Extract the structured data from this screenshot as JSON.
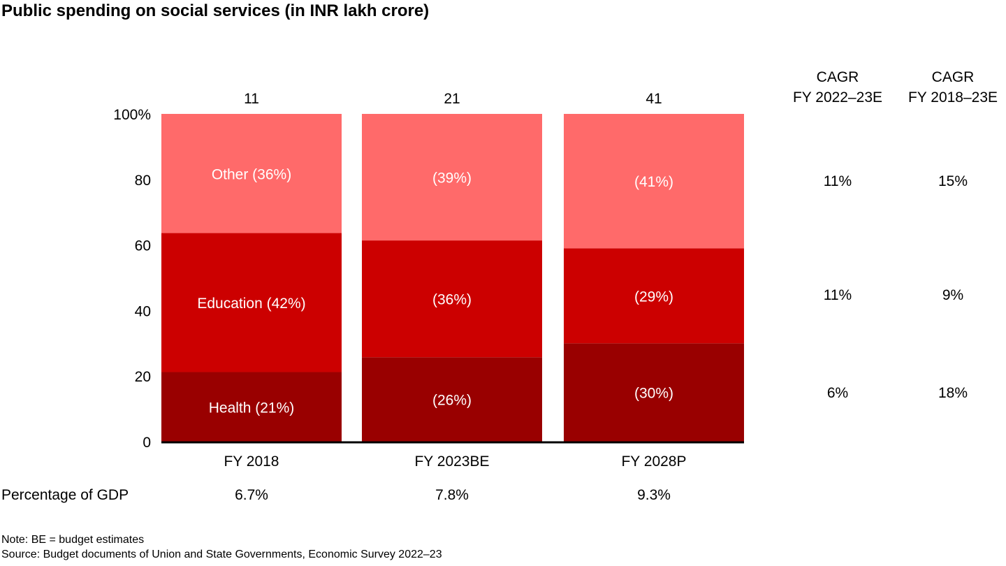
{
  "title": "Public spending on social services (in INR lakh crore)",
  "chart_data": {
    "type": "bar",
    "stacked": true,
    "normalized": true,
    "title": "Public spending on social services (in INR lakh crore)",
    "categories": [
      "FY 2018",
      "FY 2023BE",
      "FY 2028P"
    ],
    "totals": [
      "11",
      "21",
      "41"
    ],
    "ylim": [
      0,
      100
    ],
    "yticks": [
      "0",
      "20",
      "40",
      "60",
      "80",
      "100%"
    ],
    "ytick_values": [
      0,
      20,
      40,
      60,
      80,
      100
    ],
    "series": [
      {
        "name": "Health",
        "values": [
          21,
          26,
          30
        ],
        "labels": [
          "Health (21%)",
          "(26%)",
          "(30%)"
        ],
        "color": "#990000"
      },
      {
        "name": "Education",
        "values": [
          42,
          36,
          29
        ],
        "labels": [
          "Education (42%)",
          "(36%)",
          "(29%)"
        ],
        "color": "#CC0000"
      },
      {
        "name": "Other",
        "values": [
          36,
          39,
          41
        ],
        "labels": [
          "Other (36%)",
          "(39%)",
          "(41%)"
        ],
        "color": "#FF6A6A"
      }
    ],
    "cagr_columns": [
      {
        "header": [
          "CAGR",
          "FY 2022–23E"
        ],
        "values": {
          "Other": "11%",
          "Education": "11%",
          "Health": "6%"
        }
      },
      {
        "header": [
          "CAGR",
          "FY 2018–23E"
        ],
        "values": {
          "Other": "15%",
          "Education": "9%",
          "Health": "18%"
        }
      }
    ],
    "gdp_row": {
      "label": "Percentage of GDP",
      "values": [
        "6.7%",
        "7.8%",
        "9.3%"
      ]
    },
    "legend": "none"
  },
  "notes": {
    "note": "Note: BE = budget estimates",
    "source": "Source: Budget documents of Union and State Governments, Economic Survey 2022–23"
  }
}
